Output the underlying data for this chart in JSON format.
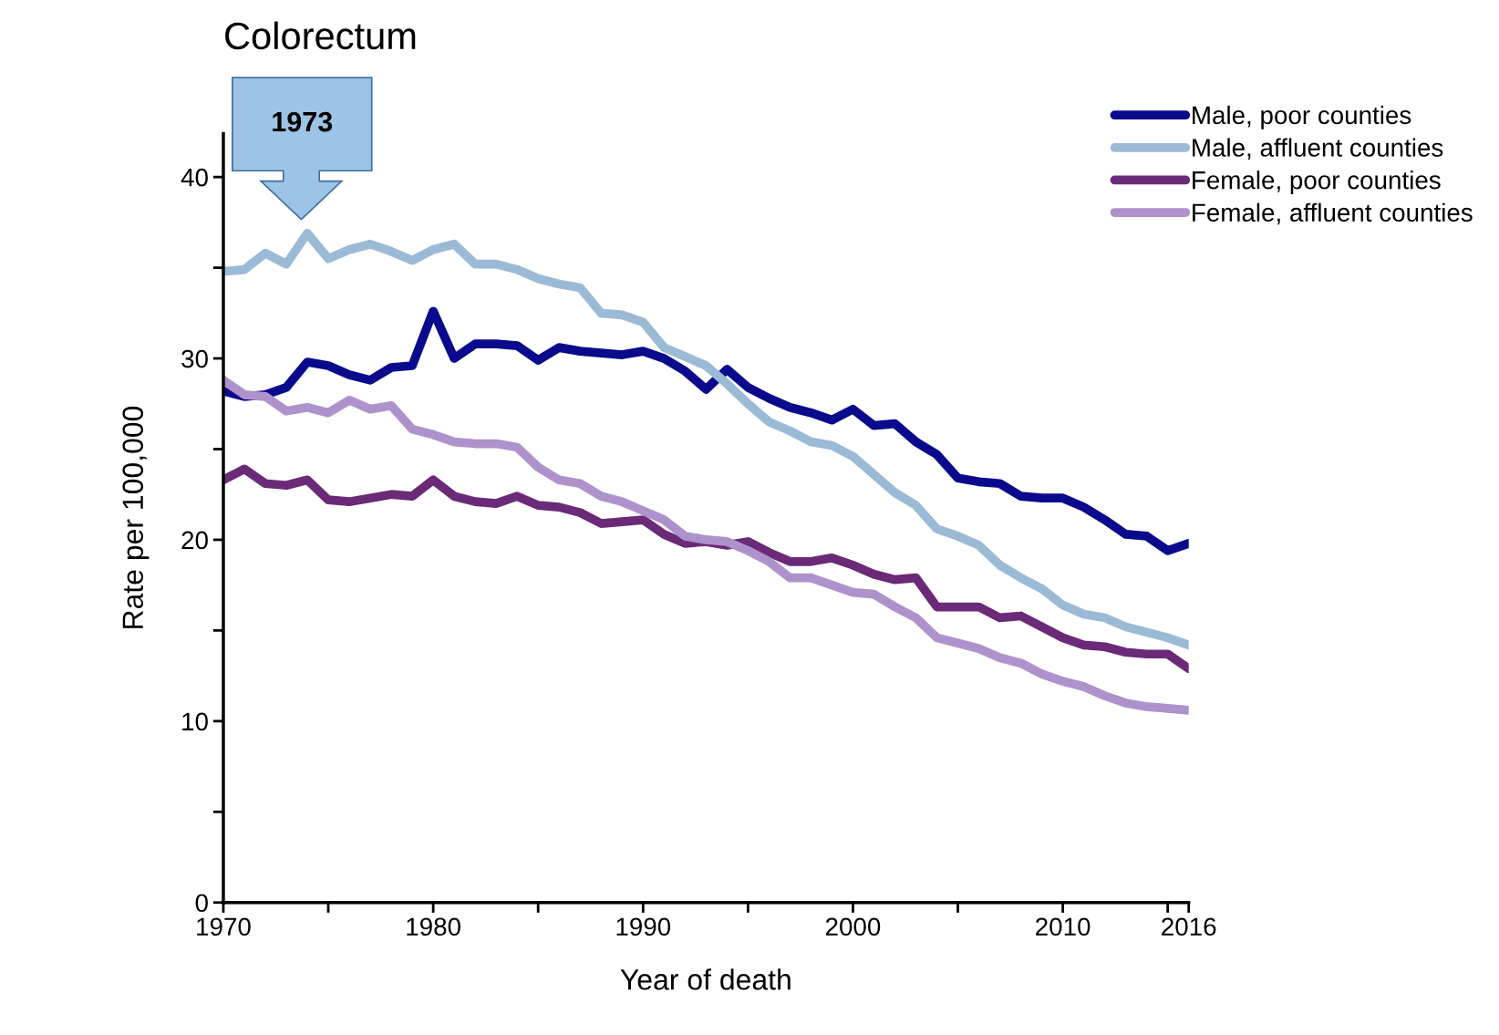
{
  "chart_data": {
    "type": "line",
    "title": "Colorectum",
    "xlabel": "Year of death",
    "ylabel": "Rate per 100,000",
    "annotations": [
      "1973"
    ],
    "x": [
      1970,
      1971,
      1972,
      1973,
      1974,
      1975,
      1976,
      1977,
      1978,
      1979,
      1980,
      1981,
      1982,
      1983,
      1984,
      1985,
      1986,
      1987,
      1988,
      1989,
      1990,
      1991,
      1992,
      1993,
      1994,
      1995,
      1996,
      1997,
      1998,
      1999,
      2000,
      2001,
      2002,
      2003,
      2004,
      2005,
      2006,
      2007,
      2008,
      2009,
      2010,
      2011,
      2012,
      2013,
      2014,
      2015,
      2016
    ],
    "series": [
      {
        "name": "Male, poor counties",
        "color": "#0a0a8c",
        "values": [
          28.2,
          27.9,
          28.0,
          28.4,
          29.8,
          29.6,
          29.1,
          28.8,
          29.5,
          29.6,
          32.6,
          30.0,
          30.8,
          30.8,
          30.7,
          29.9,
          30.6,
          30.4,
          30.3,
          30.2,
          30.4,
          30.0,
          29.3,
          28.3,
          29.4,
          28.4,
          27.8,
          27.3,
          27.0,
          26.6,
          27.2,
          26.3,
          26.4,
          25.4,
          24.7,
          23.4,
          23.2,
          23.1,
          22.4,
          22.3,
          22.3,
          21.8,
          21.1,
          20.3,
          20.2,
          19.4,
          19.8
        ]
      },
      {
        "name": "Male, affluent counties",
        "color": "#9bbad6",
        "values": [
          34.8,
          34.9,
          35.8,
          35.2,
          36.9,
          35.5,
          36.0,
          36.3,
          35.9,
          35.4,
          36.0,
          36.3,
          35.2,
          35.2,
          34.9,
          34.4,
          34.1,
          33.9,
          32.5,
          32.4,
          32.0,
          30.6,
          30.1,
          29.6,
          28.6,
          27.5,
          26.5,
          26.0,
          25.4,
          25.2,
          24.6,
          23.6,
          22.6,
          21.9,
          20.6,
          20.2,
          19.7,
          18.6,
          17.9,
          17.3,
          16.4,
          15.9,
          15.7,
          15.2,
          14.9,
          14.6,
          14.2
        ]
      },
      {
        "name": "Female, poor counties",
        "color": "#6a2a78",
        "values": [
          23.3,
          23.9,
          23.1,
          23.0,
          23.3,
          22.2,
          22.1,
          22.3,
          22.5,
          22.4,
          23.3,
          22.4,
          22.1,
          22.0,
          22.4,
          21.9,
          21.8,
          21.5,
          20.9,
          21.0,
          21.1,
          20.3,
          19.8,
          19.9,
          19.7,
          19.9,
          19.3,
          18.8,
          18.8,
          19.0,
          18.6,
          18.1,
          17.8,
          17.9,
          16.3,
          16.3,
          16.3,
          15.7,
          15.8,
          15.2,
          14.6,
          14.2,
          14.1,
          13.8,
          13.7,
          13.7,
          12.9
        ]
      },
      {
        "name": "Female, affluent counties",
        "color": "#ad92cc",
        "values": [
          28.8,
          28.0,
          27.9,
          27.1,
          27.3,
          27.0,
          27.7,
          27.2,
          27.4,
          26.1,
          25.8,
          25.4,
          25.3,
          25.3,
          25.1,
          24.0,
          23.3,
          23.1,
          22.4,
          22.1,
          21.6,
          21.1,
          20.2,
          20.0,
          19.9,
          19.4,
          18.8,
          17.9,
          17.9,
          17.5,
          17.1,
          17.0,
          16.3,
          15.7,
          14.6,
          14.3,
          14.0,
          13.5,
          13.2,
          12.6,
          12.2,
          11.9,
          11.4,
          11.0,
          10.8,
          10.7,
          10.6
        ]
      }
    ],
    "xlim": [
      1970,
      2016
    ],
    "xticks": [
      1970,
      {
        "value": 1975,
        "label": null
      },
      1980,
      {
        "value": 1985,
        "label": null
      },
      1990,
      {
        "value": 1995,
        "label": null
      },
      2000,
      {
        "value": 2005,
        "label": null
      },
      2010,
      {
        "value": 2015,
        "label": null
      },
      2016
    ],
    "ylim": [
      0,
      42.4
    ],
    "yticks": [
      0,
      {
        "value": 5,
        "label": null
      },
      10,
      {
        "value": 15,
        "label": null
      },
      20,
      {
        "value": 25,
        "label": null
      },
      30,
      {
        "value": 35,
        "label": null
      },
      40
    ],
    "grid": false,
    "legend": "top right",
    "marker": "none",
    "line_style": "solid"
  }
}
